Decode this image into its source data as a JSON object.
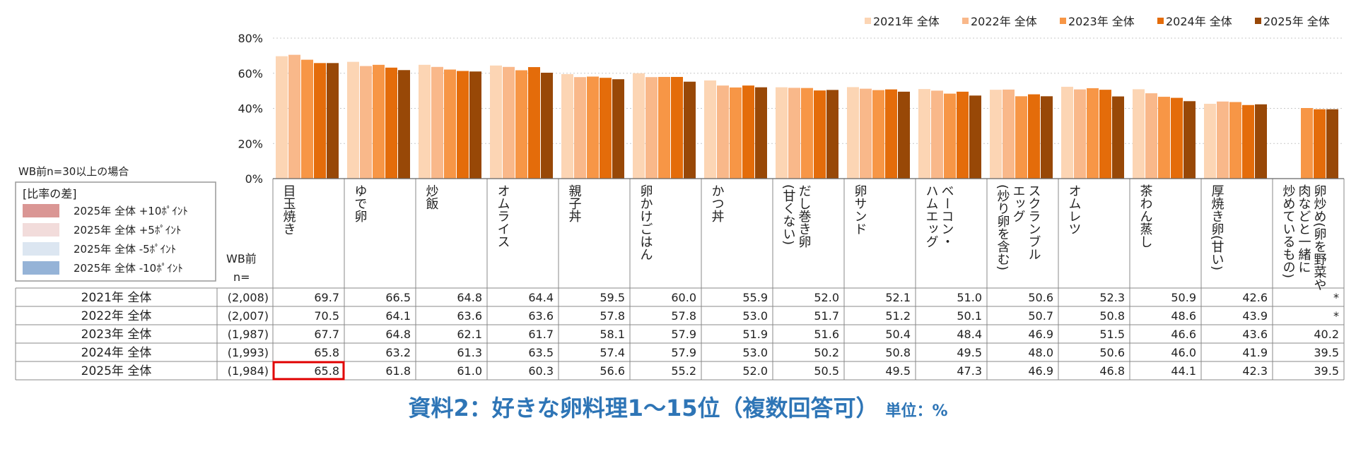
{
  "chart_data": {
    "type": "bar",
    "categories": [
      "目玉焼き",
      "ゆで卵",
      "炒飯",
      "オムライス",
      "親子丼",
      "卵かけごはん",
      "かつ丼",
      "だし巻き卵(甘くない)",
      "卵サンド",
      "ベーコン・ハムエッグ",
      "スクランブルエッグ(炒り卵を含む)",
      "オムレツ",
      "茶わん蒸し",
      "厚焼き卵(甘い)",
      "卵炒め(卵を野菜や肉などと一緒に炒めているもの)"
    ],
    "category_lines": [
      [
        "目玉焼き"
      ],
      [
        "ゆで卵"
      ],
      [
        "炒飯"
      ],
      [
        "オムライス"
      ],
      [
        "親子丼"
      ],
      [
        "卵かけごはん"
      ],
      [
        "かつ丼"
      ],
      [
        "だし巻き卵",
        "(甘くない)"
      ],
      [
        "卵サンド"
      ],
      [
        "ベーコン・",
        "ハムエッグ"
      ],
      [
        "スクランブル",
        "エッグ",
        "(炒り卵を含む)"
      ],
      [
        "オムレツ"
      ],
      [
        "茶わん蒸し"
      ],
      [
        "厚焼き卵(甘い)"
      ],
      [
        "卵炒め(卵を野菜や",
        "肉などと一緒に",
        "炒めているもの)"
      ]
    ],
    "series": [
      {
        "name": "2021年 全体",
        "n": "(2,008)",
        "color": "#fcd5b4",
        "values": [
          69.7,
          66.5,
          64.8,
          64.4,
          59.5,
          60.0,
          55.9,
          52.0,
          52.1,
          51.0,
          50.6,
          52.3,
          50.9,
          42.6,
          null
        ],
        "labels": [
          "69.7",
          "66.5",
          "64.8",
          "64.4",
          "59.5",
          "60.0",
          "55.9",
          "52.0",
          "52.1",
          "51.0",
          "50.6",
          "52.3",
          "50.9",
          "42.6",
          "*"
        ]
      },
      {
        "name": "2022年 全体",
        "n": "(2,007)",
        "color": "#f9b88a",
        "values": [
          70.5,
          64.1,
          63.6,
          63.6,
          57.8,
          57.8,
          53.0,
          51.7,
          51.2,
          50.1,
          50.7,
          50.8,
          48.6,
          43.9,
          null
        ],
        "labels": [
          "70.5",
          "64.1",
          "63.6",
          "63.6",
          "57.8",
          "57.8",
          "53.0",
          "51.7",
          "51.2",
          "50.1",
          "50.7",
          "50.8",
          "48.6",
          "43.9",
          "*"
        ]
      },
      {
        "name": "2023年 全体",
        "n": "(1,987)",
        "color": "#f79646",
        "values": [
          67.7,
          64.8,
          62.1,
          61.7,
          58.1,
          57.9,
          51.9,
          51.6,
          50.4,
          48.4,
          46.9,
          51.5,
          46.6,
          43.6,
          40.2
        ],
        "labels": [
          "67.7",
          "64.8",
          "62.1",
          "61.7",
          "58.1",
          "57.9",
          "51.9",
          "51.6",
          "50.4",
          "48.4",
          "46.9",
          "51.5",
          "46.6",
          "43.6",
          "40.2"
        ]
      },
      {
        "name": "2024年 全体",
        "n": "(1,993)",
        "color": "#e46c0a",
        "values": [
          65.8,
          63.2,
          61.3,
          63.5,
          57.4,
          57.9,
          53.0,
          50.2,
          50.8,
          49.5,
          48.0,
          50.6,
          46.0,
          41.9,
          39.5
        ],
        "labels": [
          "65.8",
          "63.2",
          "61.3",
          "63.5",
          "57.4",
          "57.9",
          "53.0",
          "50.2",
          "50.8",
          "49.5",
          "48.0",
          "50.6",
          "46.0",
          "41.9",
          "39.5"
        ]
      },
      {
        "name": "2025年 全体",
        "n": "(1,984)",
        "color": "#984807",
        "values": [
          65.8,
          61.8,
          61.0,
          60.3,
          56.6,
          55.2,
          52.0,
          50.5,
          49.5,
          47.3,
          46.9,
          46.8,
          44.1,
          42.3,
          39.5
        ],
        "labels": [
          "65.8",
          "61.8",
          "61.0",
          "60.3",
          "56.6",
          "55.2",
          "52.0",
          "50.5",
          "49.5",
          "47.3",
          "46.9",
          "46.8",
          "44.1",
          "42.3",
          "39.5"
        ]
      }
    ],
    "yticks": [
      "0%",
      "20%",
      "40%",
      "60%",
      "80%"
    ],
    "ylim": [
      0,
      80
    ],
    "legend_position": "top-right",
    "highlight_cell": {
      "row": 4,
      "col": 0,
      "color": "#e00000"
    },
    "table_header": {
      "wb": "WB前",
      "n": "n="
    },
    "note": "WB前n=30以上の場合",
    "diff_legend": {
      "title": "[比率の差]",
      "items": [
        {
          "label": "2025年 全体 +10ﾎﾟｲﾝﾄ",
          "color": "#da9694"
        },
        {
          "label": "2025年 全体 +5ﾎﾟｲﾝﾄ",
          "color": "#f2dcdb"
        },
        {
          "label": "2025年 全体 -5ﾎﾟｲﾝﾄ",
          "color": "#dce6f1"
        },
        {
          "label": "2025年 全体 -10ﾎﾟｲﾝﾄ",
          "color": "#95b3d7"
        }
      ]
    }
  },
  "caption": {
    "main": "資料2：好きな卵料理1〜15位（複数回答可）",
    "unit": "単位：%"
  }
}
